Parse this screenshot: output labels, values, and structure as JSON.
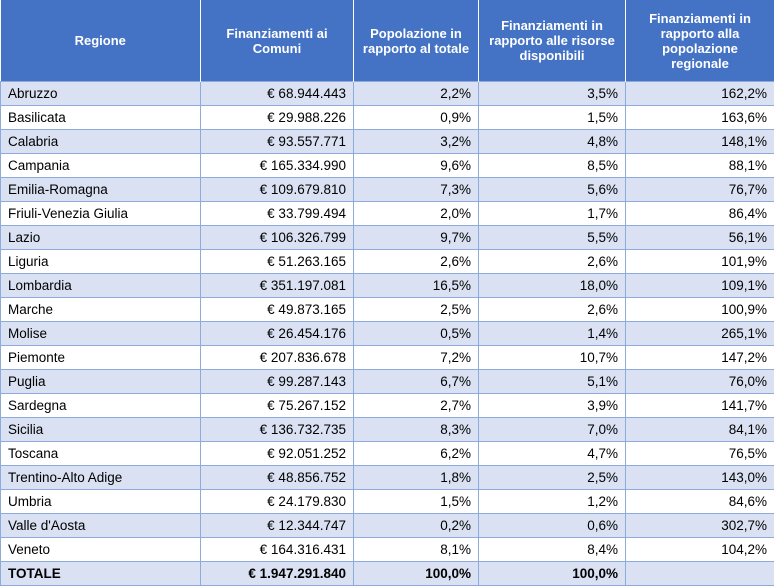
{
  "table": {
    "header": [
      "Regione",
      "Finanziamenti ai Comuni",
      "Popolazione in rapporto al totale",
      "Finanziamenti in rapporto alle risorse disponibili",
      "Finanziamenti in rapporto alla popolazione regionale"
    ],
    "rows": [
      [
        "Abruzzo",
        "€ 68.944.443",
        "2,2%",
        "3,5%",
        "162,2%"
      ],
      [
        "Basilicata",
        "€ 29.988.226",
        "0,9%",
        "1,5%",
        "163,6%"
      ],
      [
        "Calabria",
        "€ 93.557.771",
        "3,2%",
        "4,8%",
        "148,1%"
      ],
      [
        "Campania",
        "€ 165.334.990",
        "9,6%",
        "8,5%",
        "88,1%"
      ],
      [
        "Emilia-Romagna",
        "€ 109.679.810",
        "7,3%",
        "5,6%",
        "76,7%"
      ],
      [
        "Friuli-Venezia Giulia",
        "€ 33.799.494",
        "2,0%",
        "1,7%",
        "86,4%"
      ],
      [
        "Lazio",
        "€ 106.326.799",
        "9,7%",
        "5,5%",
        "56,1%"
      ],
      [
        "Liguria",
        "€ 51.263.165",
        "2,6%",
        "2,6%",
        "101,9%"
      ],
      [
        "Lombardia",
        "€ 351.197.081",
        "16,5%",
        "18,0%",
        "109,1%"
      ],
      [
        "Marche",
        "€ 49.873.165",
        "2,5%",
        "2,6%",
        "100,9%"
      ],
      [
        "Molise",
        "€ 26.454.176",
        "0,5%",
        "1,4%",
        "265,1%"
      ],
      [
        "Piemonte",
        "€ 207.836.678",
        "7,2%",
        "10,7%",
        "147,2%"
      ],
      [
        "Puglia",
        "€ 99.287.143",
        "6,7%",
        "5,1%",
        "76,0%"
      ],
      [
        "Sardegna",
        "€ 75.267.152",
        "2,7%",
        "3,9%",
        "141,7%"
      ],
      [
        "Sicilia",
        "€ 136.732.735",
        "8,3%",
        "7,0%",
        "84,1%"
      ],
      [
        "Toscana",
        "€ 92.051.252",
        "6,2%",
        "4,7%",
        "76,5%"
      ],
      [
        "Trentino-Alto Adige",
        "€ 48.856.752",
        "1,8%",
        "2,5%",
        "143,0%"
      ],
      [
        "Umbria",
        "€ 24.179.830",
        "1,5%",
        "1,2%",
        "84,6%"
      ],
      [
        "Valle d'Aosta",
        "€ 12.344.747",
        "0,2%",
        "0,6%",
        "302,7%"
      ],
      [
        "Veneto",
        "€ 164.316.431",
        "8,1%",
        "8,4%",
        "104,2%"
      ],
      [
        "TOTALE",
        "€ 1.947.291.840",
        "100,0%",
        "100,0%"
      ]
    ]
  }
}
